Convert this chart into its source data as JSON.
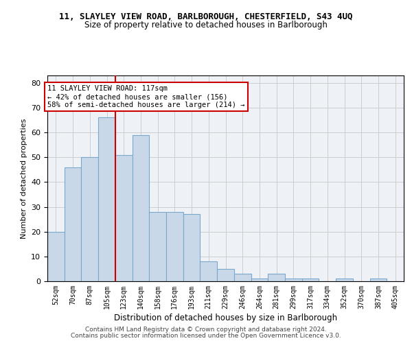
{
  "title_line1": "11, SLAYLEY VIEW ROAD, BARLBOROUGH, CHESTERFIELD, S43 4UQ",
  "title_line2": "Size of property relative to detached houses in Barlborough",
  "xlabel": "Distribution of detached houses by size in Barlborough",
  "ylabel": "Number of detached properties",
  "categories": [
    "52sqm",
    "70sqm",
    "87sqm",
    "105sqm",
    "123sqm",
    "140sqm",
    "158sqm",
    "176sqm",
    "193sqm",
    "211sqm",
    "229sqm",
    "246sqm",
    "264sqm",
    "281sqm",
    "299sqm",
    "317sqm",
    "334sqm",
    "352sqm",
    "370sqm",
    "387sqm",
    "405sqm"
  ],
  "bar_values": [
    20,
    46,
    50,
    66,
    51,
    59,
    28,
    28,
    27,
    8,
    5,
    3,
    1,
    3,
    1,
    1,
    0,
    1,
    0,
    1,
    0
  ],
  "bar_color": "#c8d8e8",
  "bar_edgecolor": "#7aa8cc",
  "vline_index": 3.5,
  "vline_color": "#cc0000",
  "ylim": [
    0,
    83
  ],
  "yticks": [
    0,
    10,
    20,
    30,
    40,
    50,
    60,
    70,
    80
  ],
  "grid_color": "#cccccc",
  "annotation_line1": "11 SLAYLEY VIEW ROAD: 117sqm",
  "annotation_line2": "← 42% of detached houses are smaller (156)",
  "annotation_line3": "58% of semi-detached houses are larger (214) →",
  "annotation_box_color": "#ffffff",
  "annotation_border_color": "#cc0000",
  "footer_line1": "Contains HM Land Registry data © Crown copyright and database right 2024.",
  "footer_line2": "Contains public sector information licensed under the Open Government Licence v3.0.",
  "bg_color": "#eef2f7"
}
